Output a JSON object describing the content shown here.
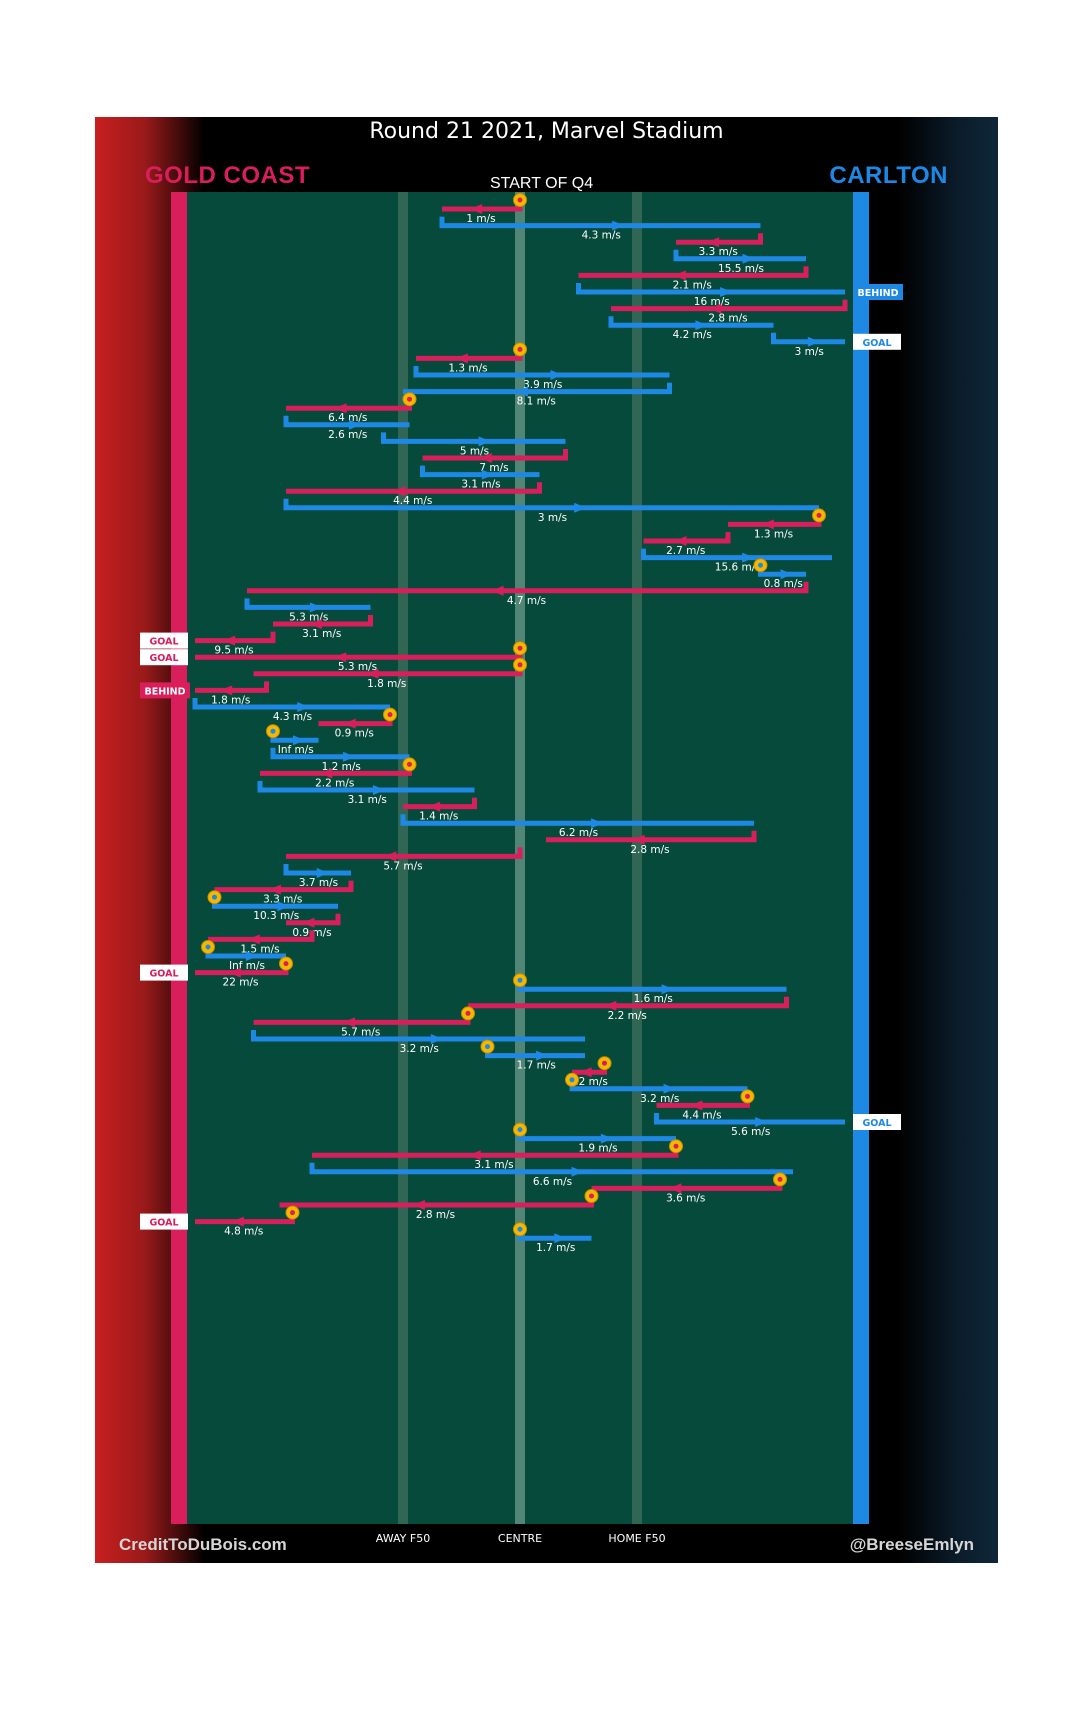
{
  "header": {
    "title": "Round 21 2021, Marvel Stadium",
    "home_team": "GOLD COAST",
    "away_team": "CARLTON",
    "subtitle": "START OF Q4"
  },
  "footer": {
    "credit_left": "CreditToDuBois.com",
    "credit_right": "@BreeseEmlyn"
  },
  "colors": {
    "gold_coast": "#d81e5b",
    "carlton": "#1e88e5",
    "field": "#064a3b",
    "stoppage": "#f5b800"
  },
  "chart_data": {
    "type": "line",
    "title": "Round 21 2021, Marvel Stadium",
    "subtitle": "START OF Q4",
    "teams": {
      "left_goal": "GOLD COAST",
      "right_goal": "CARLTON"
    },
    "xlabel": "",
    "ylabel": "",
    "xlim": [
      0,
      100
    ],
    "x_axis": "ground position from Gold Coast goal (0) to Carlton goal (100)",
    "y_axis": "chain sequence, top to bottom",
    "x_ticks": [
      {
        "x": 32,
        "label": "AWAY F50"
      },
      {
        "x": 50,
        "label": "CENTRE"
      },
      {
        "x": 68,
        "label": "HOME F50"
      }
    ],
    "series": [
      {
        "name": "GOLD COAST",
        "team": "gc"
      },
      {
        "name": "CARLTON",
        "team": "cfc"
      }
    ],
    "chains": [
      {
        "team": "gc",
        "x_start": 50,
        "x_end": 38,
        "speed": "1 m/s",
        "stoppage": true
      },
      {
        "team": "cfc",
        "x_start": 38,
        "x_end": 87,
        "speed": "4.3 m/s"
      },
      {
        "team": "gc",
        "x_start": 87,
        "x_end": 74,
        "speed": "3.3 m/s"
      },
      {
        "team": "cfc",
        "x_start": 74,
        "x_end": 94,
        "speed": "15.5 m/s"
      },
      {
        "team": "gc",
        "x_start": 94,
        "x_end": 59,
        "speed": "2.1 m/s"
      },
      {
        "team": "cfc",
        "x_start": 59,
        "x_end": 100,
        "speed": "16 m/s",
        "result": "BEHIND"
      },
      {
        "team": "gc",
        "x_start": 100,
        "x_end": 64,
        "speed": "2.8 m/s"
      },
      {
        "team": "cfc",
        "x_start": 64,
        "x_end": 89,
        "speed": "4.2 m/s"
      },
      {
        "team": "cfc",
        "x_start": 89,
        "x_end": 100,
        "speed": "3 m/s",
        "result": "GOAL"
      },
      {
        "team": "gc",
        "x_start": 50,
        "x_end": 34,
        "speed": "1.3 m/s",
        "stoppage": true
      },
      {
        "team": "cfc",
        "x_start": 34,
        "x_end": 73,
        "speed": "3.9 m/s"
      },
      {
        "team": "cfc",
        "x_start": 73,
        "x_end": 32,
        "speed": "8.1 m/s"
      },
      {
        "team": "gc",
        "x_start": 33,
        "x_end": 14,
        "speed": "6.4 m/s",
        "stoppage": true
      },
      {
        "team": "cfc",
        "x_start": 14,
        "x_end": 33,
        "speed": "2.6 m/s"
      },
      {
        "team": "cfc",
        "x_start": 29,
        "x_end": 57,
        "speed": "5 m/s"
      },
      {
        "team": "gc",
        "x_start": 57,
        "x_end": 35,
        "speed": "7 m/s"
      },
      {
        "team": "cfc",
        "x_start": 35,
        "x_end": 53,
        "speed": "3.1 m/s"
      },
      {
        "team": "gc",
        "x_start": 53,
        "x_end": 14,
        "speed": "4.4 m/s"
      },
      {
        "team": "cfc",
        "x_start": 14,
        "x_end": 96,
        "speed": "3 m/s"
      },
      {
        "team": "gc",
        "x_start": 96,
        "x_end": 82,
        "speed": "1.3 m/s",
        "stoppage": true
      },
      {
        "team": "gc",
        "x_start": 82,
        "x_end": 69,
        "speed": "2.7 m/s"
      },
      {
        "team": "cfc",
        "x_start": 69,
        "x_end": 98,
        "speed": "15.6 m/s"
      },
      {
        "team": "cfc",
        "x_start": 87,
        "x_end": 94,
        "speed": "0.8 m/s",
        "stoppage": true
      },
      {
        "team": "gc",
        "x_start": 94,
        "x_end": 8,
        "speed": "4.7 m/s"
      },
      {
        "team": "cfc",
        "x_start": 8,
        "x_end": 27,
        "speed": "5.3 m/s"
      },
      {
        "team": "gc",
        "x_start": 27,
        "x_end": 12,
        "speed": "3.1 m/s"
      },
      {
        "team": "gc",
        "x_start": 12,
        "x_end": 0,
        "speed": "9.5 m/s",
        "result": "GOAL"
      },
      {
        "team": "gc",
        "x_start": 50,
        "x_end": 0,
        "speed": "5.3 m/s",
        "result": "GOAL",
        "stoppage": true
      },
      {
        "team": "gc",
        "x_start": 50,
        "x_end": 9,
        "speed": "1.8 m/s",
        "stoppage": true
      },
      {
        "team": "gc",
        "x_start": 11,
        "x_end": 0,
        "speed": "1.8 m/s",
        "result": "BEHIND"
      },
      {
        "team": "cfc",
        "x_start": 0,
        "x_end": 30,
        "speed": "4.3 m/s"
      },
      {
        "team": "gc",
        "x_start": 30,
        "x_end": 19,
        "speed": "0.9 m/s",
        "stoppage": true
      },
      {
        "team": "cfc",
        "x_start": 12,
        "x_end": 19,
        "speed": "Inf m/s",
        "stoppage": true
      },
      {
        "team": "cfc",
        "x_start": 12,
        "x_end": 33,
        "speed": "1.2 m/s"
      },
      {
        "team": "gc",
        "x_start": 33,
        "x_end": 10,
        "speed": "2.2 m/s",
        "stoppage": true
      },
      {
        "team": "cfc",
        "x_start": 10,
        "x_end": 43,
        "speed": "3.1 m/s"
      },
      {
        "team": "gc",
        "x_start": 43,
        "x_end": 32,
        "speed": "1.4 m/s"
      },
      {
        "team": "cfc",
        "x_start": 32,
        "x_end": 86,
        "speed": "6.2 m/s"
      },
      {
        "team": "gc",
        "x_start": 86,
        "x_end": 54,
        "speed": "2.8 m/s"
      },
      {
        "team": "gc",
        "x_start": 50,
        "x_end": 14,
        "speed": "5.7 m/s"
      },
      {
        "team": "cfc",
        "x_start": 14,
        "x_end": 24,
        "speed": "3.7 m/s"
      },
      {
        "team": "gc",
        "x_start": 24,
        "x_end": 3,
        "speed": "3.3 m/s"
      },
      {
        "team": "cfc",
        "x_start": 3,
        "x_end": 22,
        "speed": "10.3 m/s",
        "stoppage": true
      },
      {
        "team": "gc",
        "x_start": 22,
        "x_end": 14,
        "speed": "0.9 m/s"
      },
      {
        "team": "gc",
        "x_start": 18,
        "x_end": 2,
        "speed": "1.5 m/s"
      },
      {
        "team": "cfc",
        "x_start": 2,
        "x_end": 14,
        "speed": "Inf m/s",
        "stoppage": true
      },
      {
        "team": "gc",
        "x_start": 14,
        "x_end": 0,
        "speed": "22 m/s",
        "result": "GOAL",
        "stoppage": true
      },
      {
        "team": "cfc",
        "x_start": 50,
        "x_end": 91,
        "speed": "1.6 m/s",
        "stoppage": true
      },
      {
        "team": "gc",
        "x_start": 91,
        "x_end": 42,
        "speed": "2.2 m/s"
      },
      {
        "team": "gc",
        "x_start": 42,
        "x_end": 9,
        "speed": "5.7 m/s",
        "stoppage": true
      },
      {
        "team": "cfc",
        "x_start": 9,
        "x_end": 60,
        "speed": "3.2 m/s"
      },
      {
        "team": "cfc",
        "x_start": 45,
        "x_end": 60,
        "speed": "1.7 m/s",
        "stoppage": true
      },
      {
        "team": "gc",
        "x_start": 63,
        "x_end": 58,
        "speed": "7.2 m/s",
        "stoppage": true
      },
      {
        "team": "cfc",
        "x_start": 58,
        "x_end": 85,
        "speed": "3.2 m/s",
        "stoppage": true
      },
      {
        "team": "gc",
        "x_start": 85,
        "x_end": 71,
        "speed": "4.4 m/s",
        "stoppage": true
      },
      {
        "team": "cfc",
        "x_start": 71,
        "x_end": 100,
        "speed": "5.6 m/s",
        "result": "GOAL"
      },
      {
        "team": "cfc",
        "x_start": 50,
        "x_end": 74,
        "speed": "1.9 m/s",
        "stoppage": true
      },
      {
        "team": "gc",
        "x_start": 74,
        "x_end": 18,
        "speed": "3.1 m/s",
        "stoppage": true
      },
      {
        "team": "cfc",
        "x_start": 18,
        "x_end": 92,
        "speed": "6.6 m/s"
      },
      {
        "team": "gc",
        "x_start": 90,
        "x_end": 61,
        "speed": "3.6 m/s",
        "stoppage": true
      },
      {
        "team": "gc",
        "x_start": 61,
        "x_end": 13,
        "speed": "2.8 m/s",
        "stoppage": true
      },
      {
        "team": "gc",
        "x_start": 15,
        "x_end": 0,
        "speed": "4.8 m/s",
        "result": "GOAL",
        "stoppage": true
      },
      {
        "team": "cfc",
        "x_start": 50,
        "x_end": 61,
        "speed": "1.7 m/s",
        "stoppage": true
      }
    ]
  }
}
